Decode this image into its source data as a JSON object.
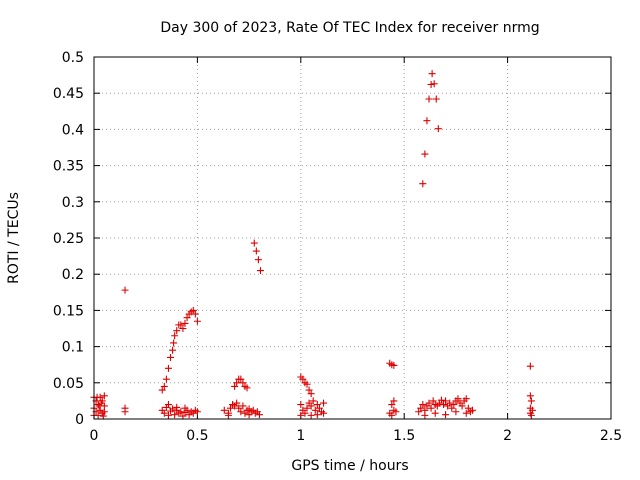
{
  "chart_data": {
    "type": "scatter",
    "title": "Day 300 of 2023, Rate Of TEC Index for receiver nrmg",
    "xlabel": "GPS time / hours",
    "ylabel": "ROTI / TECUs",
    "xlim": [
      0,
      2.5
    ],
    "ylim": [
      0,
      0.5
    ],
    "xticks": [
      0,
      0.5,
      1,
      1.5,
      2,
      2.5
    ],
    "xtick_labels": [
      "0",
      "0.5",
      "1",
      "1.5",
      "2",
      "2.5"
    ],
    "yticks": [
      0,
      0.05,
      0.1,
      0.15,
      0.2,
      0.25,
      0.3,
      0.35,
      0.4,
      0.45,
      0.5
    ],
    "ytick_labels": [
      "0",
      "0.05",
      "0.1",
      "0.15",
      "0.2",
      "0.25",
      "0.3",
      "0.35",
      "0.4",
      "0.45",
      "0.5"
    ],
    "grid": true,
    "marker": "+",
    "color": "#dd0000",
    "series": [
      {
        "name": "ROTI",
        "points": [
          [
            0.0,
            0.03
          ],
          [
            0.01,
            0.01
          ],
          [
            0.02,
            0.02
          ],
          [
            0.03,
            0.03
          ],
          [
            0.04,
            0.025
          ],
          [
            0.05,
            0.032
          ],
          [
            0.0,
            0.015
          ],
          [
            0.01,
            0.025
          ],
          [
            0.02,
            0.005
          ],
          [
            0.03,
            0.012
          ],
          [
            0.04,
            0.008
          ],
          [
            0.05,
            0.018
          ],
          [
            0.0,
            0.005
          ],
          [
            0.015,
            0.03
          ],
          [
            0.025,
            0.018
          ],
          [
            0.035,
            0.022
          ],
          [
            0.045,
            0.004
          ],
          [
            0.05,
            0.01
          ],
          [
            0.15,
            0.178
          ],
          [
            0.15,
            0.015
          ],
          [
            0.15,
            0.01
          ],
          [
            0.33,
            0.04
          ],
          [
            0.34,
            0.045
          ],
          [
            0.35,
            0.055
          ],
          [
            0.36,
            0.07
          ],
          [
            0.37,
            0.085
          ],
          [
            0.38,
            0.095
          ],
          [
            0.385,
            0.105
          ],
          [
            0.39,
            0.115
          ],
          [
            0.4,
            0.122
          ],
          [
            0.41,
            0.13
          ],
          [
            0.42,
            0.13
          ],
          [
            0.43,
            0.125
          ],
          [
            0.44,
            0.132
          ],
          [
            0.45,
            0.14
          ],
          [
            0.46,
            0.145
          ],
          [
            0.47,
            0.148
          ],
          [
            0.48,
            0.15
          ],
          [
            0.49,
            0.145
          ],
          [
            0.5,
            0.135
          ],
          [
            0.33,
            0.012
          ],
          [
            0.34,
            0.008
          ],
          [
            0.35,
            0.016
          ],
          [
            0.36,
            0.005
          ],
          [
            0.37,
            0.011
          ],
          [
            0.38,
            0.014
          ],
          [
            0.39,
            0.006
          ],
          [
            0.4,
            0.012
          ],
          [
            0.41,
            0.008
          ],
          [
            0.42,
            0.01
          ],
          [
            0.43,
            0.004
          ],
          [
            0.44,
            0.009
          ],
          [
            0.45,
            0.012
          ],
          [
            0.46,
            0.006
          ],
          [
            0.47,
            0.01
          ],
          [
            0.48,
            0.008
          ],
          [
            0.49,
            0.012
          ],
          [
            0.5,
            0.01
          ],
          [
            0.36,
            0.02
          ],
          [
            0.4,
            0.016
          ],
          [
            0.44,
            0.015
          ],
          [
            0.63,
            0.012
          ],
          [
            0.65,
            0.008
          ],
          [
            0.66,
            0.015
          ],
          [
            0.67,
            0.02
          ],
          [
            0.68,
            0.045
          ],
          [
            0.69,
            0.05
          ],
          [
            0.7,
            0.055
          ],
          [
            0.71,
            0.055
          ],
          [
            0.72,
            0.05
          ],
          [
            0.73,
            0.045
          ],
          [
            0.74,
            0.043
          ],
          [
            0.7,
            0.015
          ],
          [
            0.71,
            0.01
          ],
          [
            0.72,
            0.018
          ],
          [
            0.73,
            0.008
          ],
          [
            0.74,
            0.012
          ],
          [
            0.75,
            0.014
          ],
          [
            0.76,
            0.01
          ],
          [
            0.77,
            0.012
          ],
          [
            0.78,
            0.008
          ],
          [
            0.79,
            0.01
          ],
          [
            0.8,
            0.006
          ],
          [
            0.65,
            0.005
          ],
          [
            0.68,
            0.018
          ],
          [
            0.69,
            0.022
          ],
          [
            0.75,
            0.006
          ],
          [
            0.775,
            0.243
          ],
          [
            0.785,
            0.232
          ],
          [
            0.795,
            0.22
          ],
          [
            0.805,
            0.205
          ],
          [
            1.0,
            0.058
          ],
          [
            1.01,
            0.055
          ],
          [
            1.02,
            0.05
          ],
          [
            1.03,
            0.048
          ],
          [
            1.04,
            0.04
          ],
          [
            1.05,
            0.035
          ],
          [
            1.0,
            0.02
          ],
          [
            1.01,
            0.012
          ],
          [
            1.02,
            0.008
          ],
          [
            1.03,
            0.015
          ],
          [
            1.04,
            0.022
          ],
          [
            1.05,
            0.018
          ],
          [
            1.06,
            0.025
          ],
          [
            1.07,
            0.012
          ],
          [
            1.08,
            0.02
          ],
          [
            1.09,
            0.015
          ],
          [
            1.1,
            0.01
          ],
          [
            1.11,
            0.022
          ],
          [
            1.0,
            0.005
          ],
          [
            1.05,
            0.005
          ],
          [
            1.08,
            0.006
          ],
          [
            1.11,
            0.008
          ],
          [
            1.43,
            0.077
          ],
          [
            1.44,
            0.075
          ],
          [
            1.45,
            0.074
          ],
          [
            1.44,
            0.02
          ],
          [
            1.45,
            0.012
          ],
          [
            1.43,
            0.008
          ],
          [
            1.44,
            0.005
          ],
          [
            1.45,
            0.025
          ],
          [
            1.46,
            0.01
          ],
          [
            1.59,
            0.325
          ],
          [
            1.6,
            0.366
          ],
          [
            1.61,
            0.412
          ],
          [
            1.62,
            0.442
          ],
          [
            1.63,
            0.462
          ],
          [
            1.635,
            0.477
          ],
          [
            1.645,
            0.463
          ],
          [
            1.655,
            0.442
          ],
          [
            1.665,
            0.401
          ],
          [
            1.57,
            0.01
          ],
          [
            1.58,
            0.015
          ],
          [
            1.59,
            0.02
          ],
          [
            1.6,
            0.012
          ],
          [
            1.61,
            0.018
          ],
          [
            1.62,
            0.022
          ],
          [
            1.63,
            0.015
          ],
          [
            1.64,
            0.025
          ],
          [
            1.65,
            0.02
          ],
          [
            1.66,
            0.018
          ],
          [
            1.67,
            0.022
          ],
          [
            1.68,
            0.026
          ],
          [
            1.69,
            0.02
          ],
          [
            1.7,
            0.025
          ],
          [
            1.71,
            0.018
          ],
          [
            1.72,
            0.022
          ],
          [
            1.73,
            0.015
          ],
          [
            1.74,
            0.02
          ],
          [
            1.75,
            0.025
          ],
          [
            1.76,
            0.028
          ],
          [
            1.77,
            0.022
          ],
          [
            1.78,
            0.018
          ],
          [
            1.79,
            0.025
          ],
          [
            1.8,
            0.028
          ],
          [
            1.81,
            0.015
          ],
          [
            1.82,
            0.01
          ],
          [
            1.83,
            0.012
          ],
          [
            1.6,
            0.005
          ],
          [
            1.65,
            0.008
          ],
          [
            1.7,
            0.006
          ],
          [
            1.75,
            0.01
          ],
          [
            1.8,
            0.008
          ],
          [
            2.11,
            0.073
          ],
          [
            2.11,
            0.032
          ],
          [
            2.115,
            0.025
          ],
          [
            2.11,
            0.015
          ],
          [
            2.11,
            0.008
          ],
          [
            2.12,
            0.012
          ],
          [
            2.115,
            0.005
          ]
        ]
      }
    ]
  }
}
